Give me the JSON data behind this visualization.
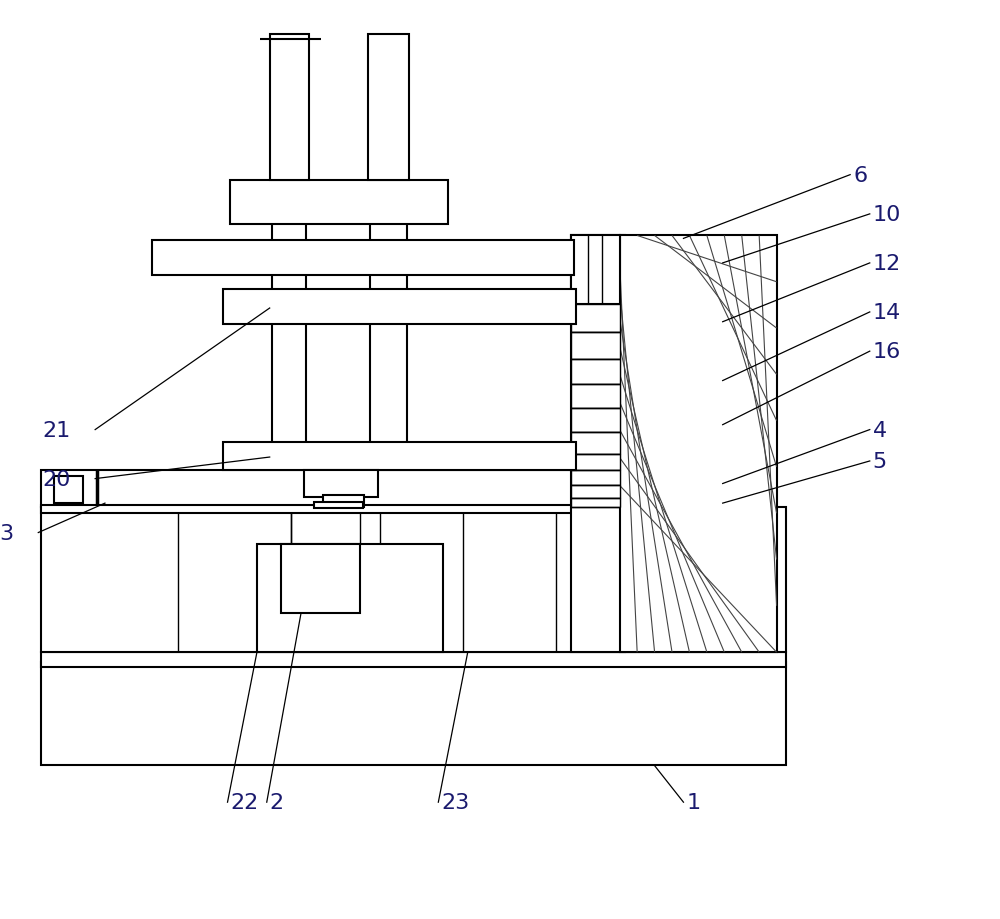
{
  "bg_color": "#ffffff",
  "line_color": "#000000",
  "lw": 1.5,
  "lw_thin": 1.0,
  "fig_width": 10.0,
  "fig_height": 9.2
}
